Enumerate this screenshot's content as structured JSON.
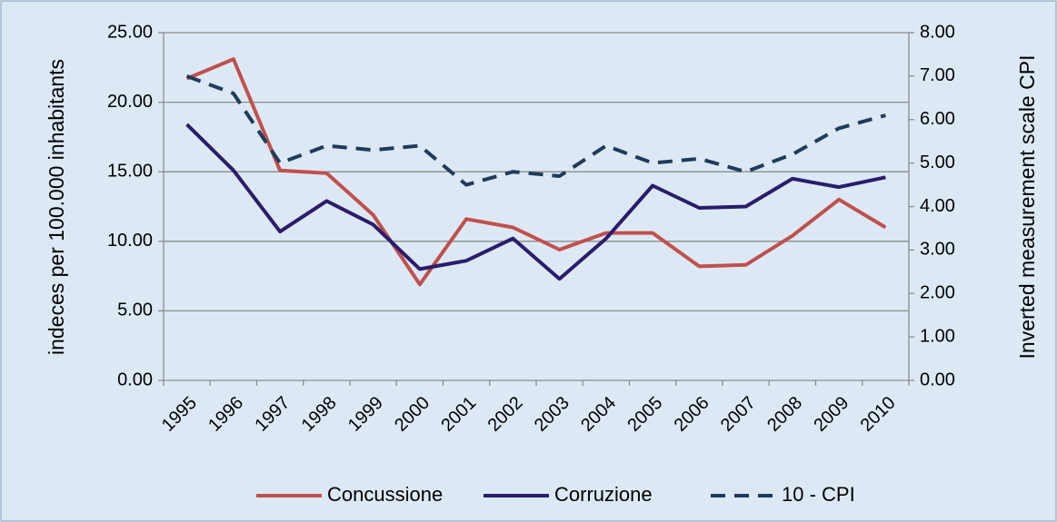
{
  "chart_data": {
    "type": "line",
    "y_label": "indeces per 100.000 inhabitants",
    "y2_label": "Inverted measurement scale CPI",
    "categories": [
      "1995",
      "1996",
      "1997",
      "1998",
      "1999",
      "2000",
      "2001",
      "2002",
      "2003",
      "2004",
      "2005",
      "2006",
      "2007",
      "2008",
      "2009",
      "2010"
    ],
    "series": [
      {
        "name": "Concussione",
        "color": "#c0504d",
        "dash": false,
        "values": [
          21.7,
          23.1,
          15.1,
          14.9,
          11.9,
          6.9,
          11.6,
          11.0,
          9.4,
          10.6,
          10.6,
          8.2,
          8.3,
          10.4,
          13.0,
          11.0
        ]
      },
      {
        "name": "Corruzione",
        "color": "#2a1c6b",
        "dash": false,
        "values": [
          18.4,
          15.1,
          10.7,
          12.9,
          11.2,
          8.0,
          8.6,
          10.2,
          7.3,
          10.2,
          14.0,
          12.4,
          12.5,
          14.5,
          13.9,
          14.6
        ]
      },
      {
        "name": "10 - CPI",
        "color": "#1f3b5c",
        "dash": true,
        "axis": "y2",
        "values": [
          7.0,
          6.6,
          5.0,
          5.4,
          5.3,
          5.4,
          4.5,
          4.8,
          4.7,
          5.4,
          5.0,
          5.1,
          4.8,
          5.2,
          5.8,
          6.1
        ]
      }
    ],
    "ylim": [
      0,
      25
    ],
    "yticks": [
      {
        "value": 0,
        "label": "0.00"
      },
      {
        "value": 5,
        "label": "5.00"
      },
      {
        "value": 10,
        "label": "10.00"
      },
      {
        "value": 15,
        "label": "15.00"
      },
      {
        "value": 20,
        "label": "20.00"
      },
      {
        "value": 25,
        "label": "25.00"
      }
    ],
    "y2lim": [
      0,
      8
    ],
    "y2ticks": [
      {
        "value": 0,
        "label": "0.00"
      },
      {
        "value": 1,
        "label": "1.00"
      },
      {
        "value": 2,
        "label": "2.00"
      },
      {
        "value": 3,
        "label": "3.00"
      },
      {
        "value": 4,
        "label": "4.00"
      },
      {
        "value": 5,
        "label": "5.00"
      },
      {
        "value": 6,
        "label": "6.00"
      },
      {
        "value": 7,
        "label": "7.00"
      },
      {
        "value": 8,
        "label": "8.00"
      }
    ],
    "grid": true,
    "legend": "bottom"
  }
}
